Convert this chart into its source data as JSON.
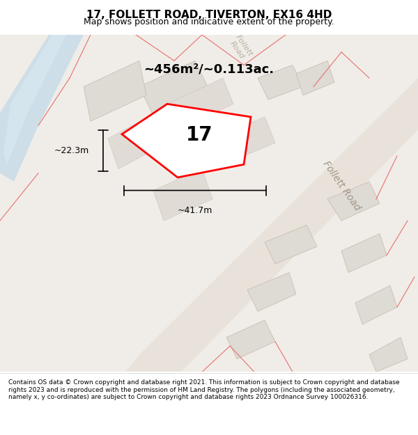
{
  "title": "17, FOLLETT ROAD, TIVERTON, EX16 4HD",
  "subtitle": "Map shows position and indicative extent of the property.",
  "footer": "Contains OS data © Crown copyright and database right 2021. This information is subject to Crown copyright and database rights 2023 and is reproduced with the permission of HM Land Registry. The polygons (including the associated geometry, namely x, y co-ordinates) are subject to Crown copyright and database rights 2023 Ordnance Survey 100026316.",
  "area_label": "~456m²/~0.113ac.",
  "width_label": "~41.7m",
  "height_label": "~22.3m",
  "property_number": "17",
  "bg_color": "#f5f3f0",
  "map_bg": "#f0ede8",
  "road_color": "#d9d0c8",
  "road_stripe_color": "#c8bfb5",
  "water_color": "#c8dce8",
  "water_stripe_color": "#d8e8f0",
  "property_fill": "#ffffff",
  "property_edge": "#ff0000",
  "nearby_fill": "#e0dbd5",
  "nearby_edge": "#c8b8a8",
  "road_line_color": "#e8b8a8",
  "follett_road_label": "Follett Road",
  "follett_road_top_label": "Follett\nRoad"
}
